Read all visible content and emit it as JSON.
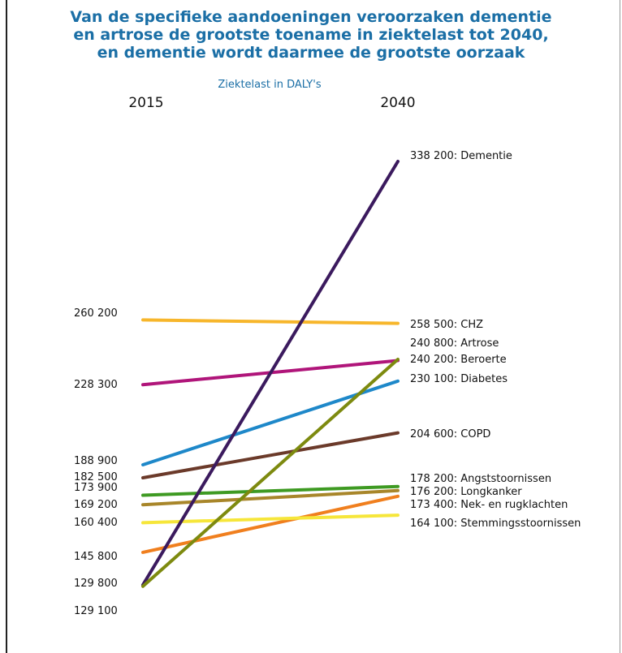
{
  "title_lines": [
    "Van de specifieke aandoeningen veroorzaken dementie",
    "en artrose de grootste toename in ziektelast tot 2040,",
    "en dementie wordt daarmee de grootste oorzaak"
  ],
  "chart_data": {
    "type": "line",
    "title": "Van de specifieke aandoeningen veroorzaken dementie en artrose de grootste toename in ziektelast tot 2040, en dementie wordt daarmee de grootste oorzaak",
    "subtitle": "Ziektelast in DALY's",
    "x": [
      "2015",
      "2040"
    ],
    "left_labels": [
      "260 200",
      "228 300",
      "188 900",
      "182 500",
      "173 900",
      "169 200",
      "160 400",
      "145 800",
      "129 800",
      "129 100"
    ],
    "series": [
      {
        "name": "Dementie",
        "values": [
          129800,
          338200
        ],
        "label_2040": "338 200: Dementie",
        "color": "#3b1a5e"
      },
      {
        "name": "CHZ",
        "values": [
          260200,
          258500
        ],
        "label_2040": "258 500: CHZ",
        "color": "#f7b62b"
      },
      {
        "name": "Artrose",
        "values": [
          129100,
          240800
        ],
        "label_2040": "240 800: Artrose",
        "color": "#7d8a0f"
      },
      {
        "name": "Beroerte",
        "values": [
          228300,
          240200
        ],
        "label_2040": "240 200: Beroerte",
        "color": "#b0157a"
      },
      {
        "name": "Diabetes",
        "values": [
          188900,
          230100
        ],
        "label_2040": "230 100: Diabetes",
        "color": "#1e88c9"
      },
      {
        "name": "COPD",
        "values": [
          182500,
          204600
        ],
        "label_2040": "204 600: COPD",
        "color": "#6b3a2a"
      },
      {
        "name": "Angststoornissen",
        "values": [
          173900,
          178200
        ],
        "label_2040": "178 200: Angststoornissen",
        "color": "#3e9a22"
      },
      {
        "name": "Longkanker",
        "values": [
          169200,
          176200
        ],
        "label_2040": "176 200: Longkanker",
        "color": "#a8862a"
      },
      {
        "name": "Nek- en rugklachten",
        "values": [
          145800,
          173400
        ],
        "label_2040": "173 400: Nek- en rugklachten",
        "color": "#f07f1e"
      },
      {
        "name": "Stemmingsstoornissen",
        "values": [
          160400,
          164100
        ],
        "label_2040": "164 100: Stemmingsstoornissen",
        "color": "#f6e63a"
      }
    ]
  }
}
